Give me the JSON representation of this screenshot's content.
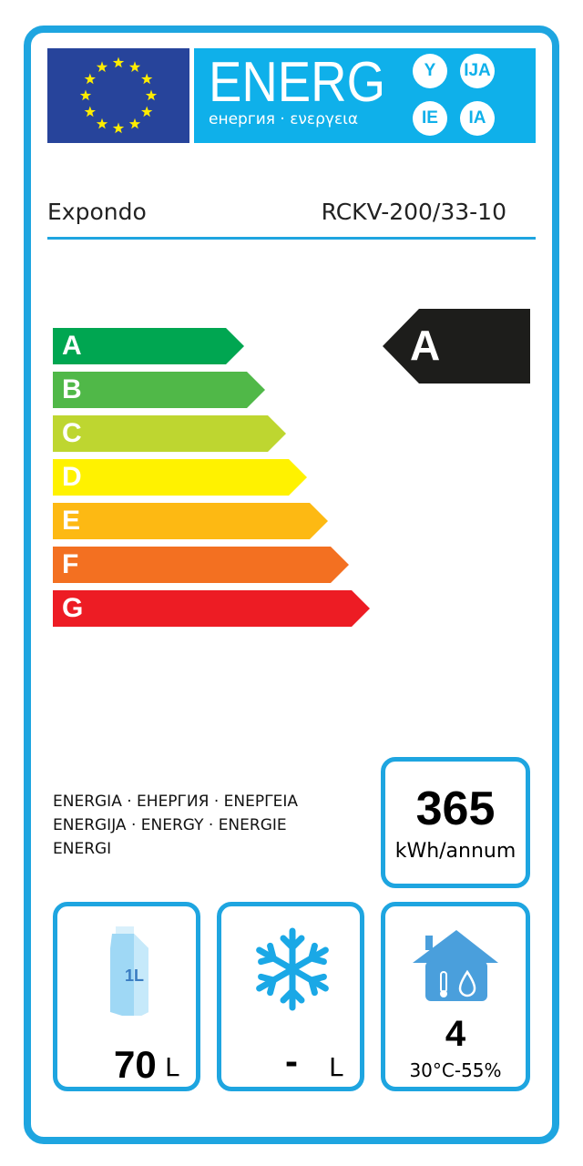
{
  "header": {
    "logo_text": "ENERG",
    "logo_subtitle": "енергия · ενεργεια",
    "suffixes": [
      "Y",
      "IJA",
      "IE",
      "IA"
    ]
  },
  "supplier": "Expondo",
  "model": "RCKV-200/33-10",
  "scale": [
    {
      "label": "A",
      "color": "#00a651"
    },
    {
      "label": "B",
      "color": "#50b848"
    },
    {
      "label": "C",
      "color": "#bed630"
    },
    {
      "label": "D",
      "color": "#fff200"
    },
    {
      "label": "E",
      "color": "#fdb913"
    },
    {
      "label": "F",
      "color": "#f37021"
    },
    {
      "label": "G",
      "color": "#ed1c24"
    }
  ],
  "rating": "A",
  "energy_words": [
    "ENERGIA · ЕНЕРГИЯ · ΕΝΕΡΓΕΙΑ",
    "ENERGIJA · ENERGY · ENERGIE",
    "ENERGI"
  ],
  "consumption": {
    "value": "365",
    "unit": "kWh/annum"
  },
  "fresh_volume": {
    "icon": "milk-carton-icon",
    "carton_label": "1L",
    "value": "70",
    "unit": "L"
  },
  "frozen_volume": {
    "icon": "snowflake-icon",
    "value": "-",
    "unit": "L"
  },
  "climate": {
    "icon": "house-climate-icon",
    "value": "4",
    "range": "30°C-55%"
  },
  "colors": {
    "frame": "#1ea5e0",
    "flag": "#27449b",
    "logo_bg": "#0fb0ea"
  }
}
